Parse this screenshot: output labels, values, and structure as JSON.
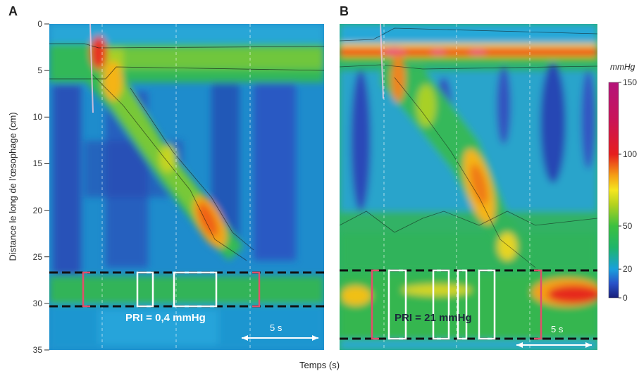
{
  "chart_data": [
    {
      "type": "heatmap",
      "panel": "A",
      "ylabel": "Distance le long de l'œsophage (cm)",
      "xlabel": "Temps (s)",
      "yticks": [
        "0",
        "5",
        "10",
        "15",
        "20",
        "25",
        "30",
        "35"
      ],
      "ylim": [
        0,
        35
      ],
      "annotation": "PRI = 0,4 mmHg",
      "scale_label": "5 s"
    },
    {
      "type": "heatmap",
      "panel": "B",
      "annotation": "PRI = 21 mmHg",
      "scale_label": "5 s"
    }
  ],
  "colorbar": {
    "unit": "mmHg",
    "ticks": [
      "150",
      "100",
      "50",
      "20",
      "0"
    ],
    "tick_values": [
      150,
      100,
      50,
      20,
      0
    ],
    "colors": [
      "#1a1f7a",
      "#2a52c8",
      "#1aa0dc",
      "#1fb56a",
      "#3cc040",
      "#b4d21e",
      "#f5e61e",
      "#f5a014",
      "#e61e1e",
      "#c8145a",
      "#b4147a"
    ],
    "color_stops": [
      0,
      10,
      20,
      35,
      50,
      65,
      75,
      85,
      100,
      125,
      150
    ]
  },
  "axis_title": "Temps (s)"
}
